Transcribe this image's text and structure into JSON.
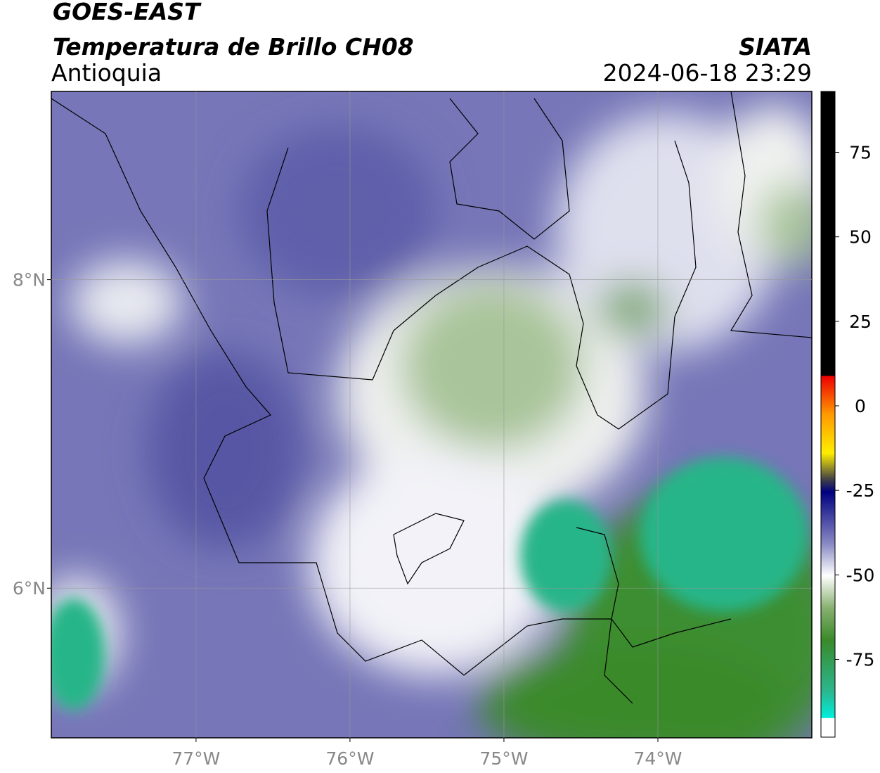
{
  "header": {
    "satellite": "GOES-EAST",
    "product": "Temperatura de Brillo CH08",
    "region": "Antioquia",
    "agency": "SIATA",
    "datetime": "2024-06-18 23:29"
  },
  "map": {
    "xlim": [
      -77.94,
      -73.0
    ],
    "ylim": [
      5.03,
      9.22
    ],
    "xticks": [
      {
        "value": -77,
        "label": "77°W"
      },
      {
        "value": -76,
        "label": "76°W"
      },
      {
        "value": -75,
        "label": "75°W"
      },
      {
        "value": -74,
        "label": "74°W"
      }
    ],
    "yticks": [
      {
        "value": 8,
        "label": "8°N"
      },
      {
        "value": 6,
        "label": "6°N"
      }
    ],
    "grid": true
  },
  "colorbar": {
    "lim": [
      -98,
      93
    ],
    "ticks": [
      75,
      50,
      25,
      0,
      -25,
      -50,
      -75
    ]
  }
}
